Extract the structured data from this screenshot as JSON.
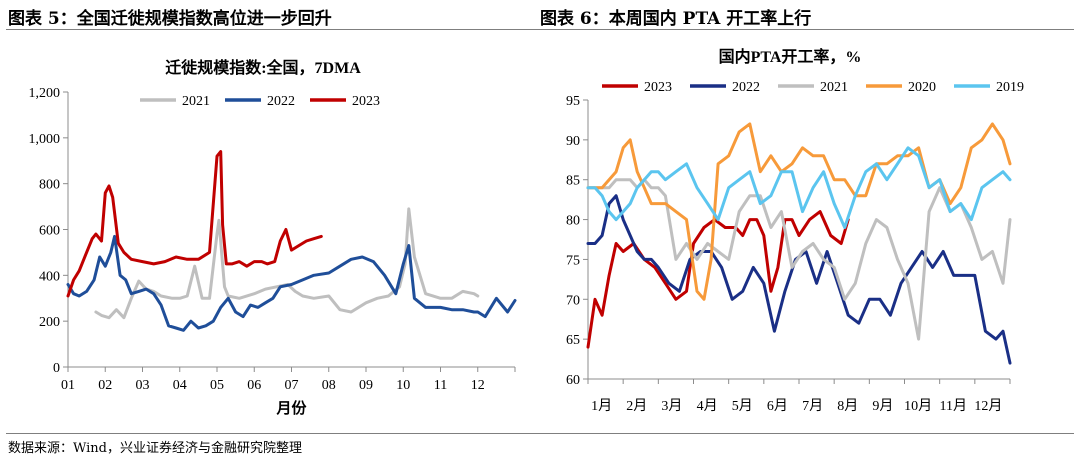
{
  "left_panel": {
    "heading": "图表 5：全国迁徙规模指数高位进一步回升"
  },
  "right_panel": {
    "heading": "图表 6：本周国内 PTA 开工率上行"
  },
  "source": "数据来源：Wind，兴业证券经济与金融研究院整理",
  "colors": {
    "2023": "#c00000",
    "2022": "#1f4e99",
    "2021": "#bfbfbf",
    "2020": "#f79a3a",
    "2019": "#5bc5ef",
    "2022b": "#1a2f86"
  },
  "chart_data": [
    {
      "type": "line",
      "title": "迁徙规模指数:全国，7DMA",
      "xlabel": "月份",
      "ylabel": "",
      "ylim": [
        0,
        1200
      ],
      "yticks": [
        "0",
        "200",
        "400",
        "600",
        "800",
        "1,000",
        "1,200"
      ],
      "categories": [
        "01",
        "02",
        "03",
        "04",
        "05",
        "06",
        "07",
        "08",
        "09",
        "10",
        "11",
        "12"
      ],
      "legend": "top",
      "series": [
        {
          "name": "2021",
          "color": "#bfbfbf",
          "x": [
            1.75,
            1.9,
            2.1,
            2.3,
            2.5,
            2.7,
            2.9,
            3.1,
            3.3,
            3.5,
            3.8,
            4.0,
            4.2,
            4.4,
            4.6,
            4.8,
            5.0,
            5.05,
            5.2,
            5.3,
            5.6,
            6.0,
            6.3,
            6.6,
            6.9,
            7.1,
            7.3,
            7.6,
            8.0,
            8.3,
            8.6,
            9.0,
            9.3,
            9.6,
            9.9,
            10.05,
            10.15,
            10.3,
            10.6,
            11.0,
            11.3,
            11.6,
            11.9,
            12.0
          ],
          "values": [
            240,
            225,
            215,
            250,
            215,
            300,
            375,
            340,
            330,
            310,
            300,
            300,
            310,
            440,
            300,
            300,
            580,
            640,
            350,
            310,
            300,
            320,
            340,
            350,
            360,
            330,
            310,
            300,
            310,
            250,
            240,
            280,
            300,
            310,
            350,
            450,
            690,
            480,
            320,
            300,
            300,
            330,
            320,
            310
          ]
        },
        {
          "name": "2022",
          "color": "#1f4e99",
          "x": [
            1.0,
            1.15,
            1.3,
            1.5,
            1.7,
            1.85,
            2.0,
            2.15,
            2.25,
            2.4,
            2.55,
            2.7,
            2.9,
            3.1,
            3.3,
            3.5,
            3.7,
            3.9,
            4.1,
            4.3,
            4.5,
            4.7,
            4.9,
            5.1,
            5.3,
            5.5,
            5.7,
            5.9,
            6.1,
            6.3,
            6.5,
            6.7,
            7.0,
            7.3,
            7.6,
            8.0,
            8.3,
            8.6,
            8.9,
            9.2,
            9.5,
            9.8,
            10.0,
            10.15,
            10.3,
            10.6,
            11.0,
            11.3,
            11.6,
            11.9,
            12.0,
            12.2,
            12.5,
            12.8,
            13.0
          ],
          "values": [
            360,
            320,
            310,
            330,
            380,
            480,
            440,
            500,
            570,
            400,
            380,
            320,
            330,
            340,
            320,
            270,
            180,
            170,
            160,
            200,
            170,
            180,
            200,
            260,
            300,
            240,
            220,
            270,
            260,
            280,
            300,
            350,
            360,
            380,
            400,
            410,
            440,
            470,
            480,
            460,
            400,
            320,
            450,
            530,
            300,
            260,
            260,
            250,
            250,
            240,
            240,
            220,
            300,
            240,
            290
          ]
        },
        {
          "name": "2023",
          "color": "#c00000",
          "x": [
            1.0,
            1.15,
            1.3,
            1.5,
            1.65,
            1.75,
            1.9,
            2.0,
            2.1,
            2.2,
            2.35,
            2.5,
            2.7,
            3.0,
            3.3,
            3.6,
            3.9,
            4.2,
            4.5,
            4.8,
            5.0,
            5.1,
            5.15,
            5.25,
            5.4,
            5.6,
            5.8,
            6.0,
            6.2,
            6.35,
            6.55,
            6.7,
            6.85,
            7.0,
            7.2,
            7.4,
            7.6,
            7.8
          ],
          "values": [
            310,
            380,
            420,
            500,
            560,
            580,
            550,
            760,
            790,
            740,
            540,
            500,
            470,
            460,
            450,
            460,
            480,
            470,
            470,
            500,
            920,
            940,
            620,
            450,
            450,
            460,
            440,
            460,
            460,
            450,
            460,
            550,
            600,
            510,
            530,
            550,
            560,
            570
          ]
        }
      ]
    },
    {
      "type": "line",
      "title": "国内PTA开工率，%",
      "xlabel": "",
      "ylabel": "",
      "ylim": [
        60,
        95
      ],
      "yticks": [
        "60",
        "65",
        "70",
        "75",
        "80",
        "85",
        "90",
        "95"
      ],
      "categories": [
        "1月",
        "2月",
        "3月",
        "4月",
        "5月",
        "6月",
        "7月",
        "8月",
        "9月",
        "10月",
        "11月",
        "12月"
      ],
      "legend": "top",
      "series": [
        {
          "name": "2023",
          "color": "#c00000",
          "x": [
            1.0,
            1.2,
            1.4,
            1.6,
            1.8,
            2.0,
            2.3,
            2.6,
            2.9,
            3.2,
            3.5,
            3.8,
            4.0,
            4.3,
            4.6,
            4.9,
            5.2,
            5.4,
            5.6,
            5.8,
            6.0,
            6.2,
            6.4,
            6.6,
            6.8,
            7.0,
            7.3,
            7.6,
            7.9,
            8.2,
            8.4
          ],
          "values": [
            64,
            70,
            68,
            73,
            77,
            76,
            77,
            75,
            74,
            72,
            70,
            71,
            77,
            79,
            80,
            79,
            79,
            78,
            80,
            80,
            78,
            71,
            74,
            80,
            80,
            78,
            80,
            81,
            78,
            77,
            80
          ]
        },
        {
          "name": "2022",
          "color": "#1a2f86",
          "x": [
            1.0,
            1.2,
            1.4,
            1.6,
            1.8,
            2.0,
            2.2,
            2.4,
            2.6,
            2.8,
            3.0,
            3.3,
            3.6,
            3.9,
            4.2,
            4.5,
            4.8,
            5.1,
            5.4,
            5.7,
            6.0,
            6.3,
            6.6,
            6.9,
            7.2,
            7.5,
            7.8,
            8.1,
            8.4,
            8.7,
            9.0,
            9.3,
            9.6,
            9.9,
            10.2,
            10.5,
            10.8,
            11.1,
            11.4,
            11.7,
            12.0,
            12.3,
            12.6,
            12.8,
            13.0
          ],
          "values": [
            77,
            77,
            78,
            82,
            83,
            80,
            78,
            76,
            75,
            75,
            74,
            72,
            71,
            75,
            76,
            76,
            74,
            70,
            71,
            74,
            72,
            66,
            71,
            75,
            76,
            72,
            76,
            72,
            68,
            67,
            70,
            70,
            68,
            72,
            74,
            76,
            74,
            76,
            73,
            73,
            73,
            66,
            65,
            66,
            62
          ]
        },
        {
          "name": "2021",
          "color": "#bfbfbf",
          "x": [
            1.0,
            1.2,
            1.4,
            1.6,
            1.8,
            2.0,
            2.2,
            2.4,
            2.6,
            2.8,
            3.0,
            3.2,
            3.5,
            3.8,
            4.1,
            4.4,
            4.7,
            5.0,
            5.3,
            5.6,
            5.9,
            6.2,
            6.5,
            6.8,
            7.1,
            7.4,
            7.7,
            8.0,
            8.3,
            8.6,
            8.9,
            9.2,
            9.5,
            9.8,
            10.1,
            10.4,
            10.7,
            11.0,
            11.3,
            11.6,
            11.9,
            12.2,
            12.5,
            12.8,
            13.0
          ],
          "values": [
            84,
            84,
            84,
            84,
            85,
            85,
            85,
            84,
            85,
            84,
            84,
            83,
            75,
            77,
            75,
            77,
            76,
            75,
            81,
            83,
            83,
            79,
            81,
            74,
            76,
            77,
            75,
            74,
            70,
            72,
            77,
            80,
            79,
            75,
            72,
            65,
            81,
            84,
            81,
            82,
            79,
            75,
            76,
            72,
            80
          ]
        },
        {
          "name": "2020",
          "color": "#f79a3a",
          "x": [
            1.0,
            1.2,
            1.4,
            1.6,
            1.8,
            2.0,
            2.2,
            2.4,
            2.6,
            2.8,
            3.0,
            3.2,
            3.5,
            3.8,
            4.1,
            4.3,
            4.5,
            4.7,
            5.0,
            5.3,
            5.6,
            5.9,
            6.2,
            6.5,
            6.8,
            7.1,
            7.4,
            7.7,
            8.0,
            8.3,
            8.6,
            8.9,
            9.2,
            9.5,
            9.8,
            10.1,
            10.4,
            10.7,
            11.0,
            11.3,
            11.6,
            11.9,
            12.2,
            12.5,
            12.8,
            13.0
          ],
          "values": [
            84,
            84,
            84,
            85,
            86,
            89,
            90,
            86,
            84,
            82,
            82,
            82,
            81,
            80,
            71,
            70,
            75,
            87,
            88,
            91,
            92,
            86,
            88,
            86,
            87,
            89,
            88,
            88,
            85,
            85,
            83,
            83,
            87,
            87,
            88,
            88,
            89,
            84,
            85,
            82,
            84,
            89,
            90,
            92,
            90,
            87
          ]
        },
        {
          "name": "2019",
          "color": "#5bc5ef",
          "x": [
            1.0,
            1.2,
            1.4,
            1.6,
            1.8,
            2.0,
            2.2,
            2.4,
            2.6,
            2.8,
            3.0,
            3.2,
            3.5,
            3.8,
            4.1,
            4.4,
            4.7,
            5.0,
            5.3,
            5.6,
            5.9,
            6.2,
            6.5,
            6.8,
            7.1,
            7.4,
            7.7,
            8.0,
            8.3,
            8.6,
            8.9,
            9.2,
            9.5,
            9.8,
            10.1,
            10.4,
            10.7,
            11.0,
            11.3,
            11.6,
            11.9,
            12.2,
            12.5,
            12.8,
            13.0
          ],
          "values": [
            84,
            84,
            83,
            81,
            80,
            81,
            82,
            84,
            85,
            86,
            86,
            85,
            86,
            87,
            84,
            82,
            80,
            84,
            85,
            86,
            82,
            83,
            86,
            86,
            81,
            84,
            86,
            82,
            79,
            83,
            86,
            87,
            85,
            87,
            89,
            88,
            84,
            85,
            81,
            82,
            80,
            84,
            85,
            86,
            85
          ]
        }
      ]
    }
  ]
}
